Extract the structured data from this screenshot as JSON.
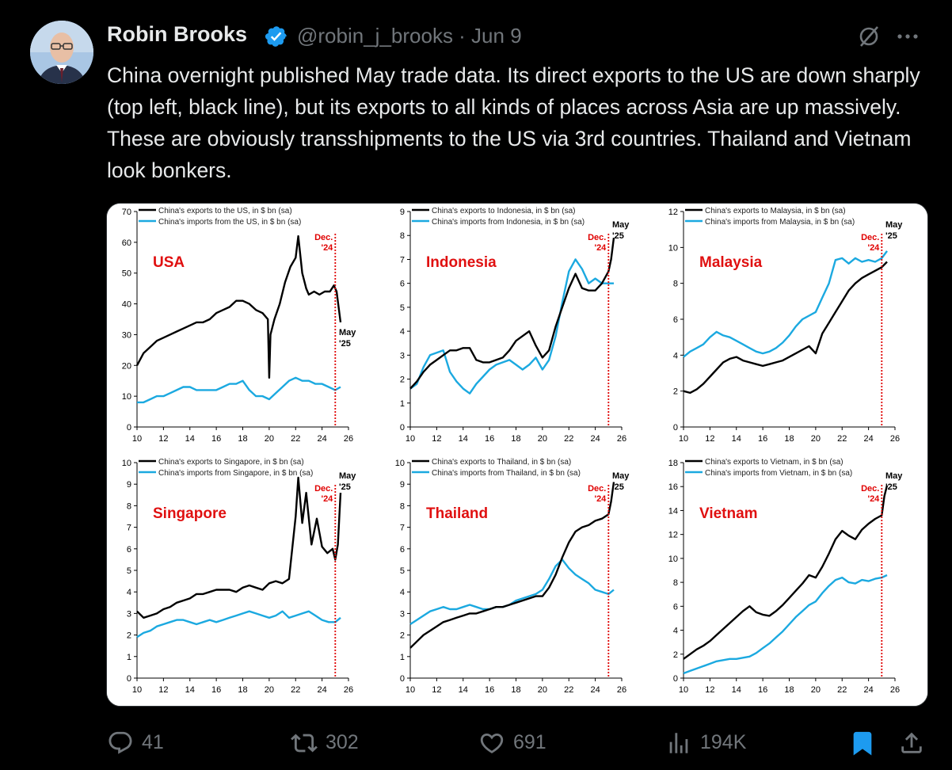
{
  "author": {
    "name": "Robin Brooks",
    "handle_date": "@robin_j_brooks · Jun 9",
    "verified": true
  },
  "tweet_text": "China overnight published May trade data. Its direct exports to the US are down sharply (top left, black line), but its exports to all kinds of places across Asia are up massively. These are obviously transshipments to the US via 3rd countries. Thailand and Vietnam look bonkers.",
  "actions": {
    "replies": "41",
    "reposts": "302",
    "likes": "691",
    "views": "194K"
  },
  "colors": {
    "exports_line": "#000000",
    "imports_line": "#1ba9e0",
    "marker_line": "#e00000",
    "country_label": "#e01010",
    "bookmark_active": "#1d9bf0"
  },
  "chart_data": [
    {
      "type": "line",
      "label": "USA",
      "ylim": [
        0,
        70
      ],
      "yticks": [
        0,
        10,
        20,
        30,
        40,
        50,
        60,
        70
      ],
      "xlim": [
        10,
        26
      ],
      "xticks": [
        10,
        12,
        14,
        16,
        18,
        20,
        22,
        24,
        26
      ],
      "marker_x": 25.0,
      "marker_label": [
        "Dec.",
        "'24"
      ],
      "end_label": [
        "May",
        "'25"
      ],
      "series": [
        {
          "name": "China's exports to the US, in $ bn (sa)",
          "color": "#000000",
          "x": [
            10,
            10.5,
            11,
            11.5,
            12,
            12.5,
            13,
            13.5,
            14,
            14.5,
            15,
            15.5,
            16,
            16.5,
            17,
            17.5,
            18,
            18.5,
            19,
            19.5,
            19.9,
            20.0,
            20.1,
            20.4,
            20.8,
            21.2,
            21.6,
            22.0,
            22.2,
            22.5,
            22.8,
            23.0,
            23.4,
            23.8,
            24.2,
            24.6,
            24.9,
            25.1,
            25.4
          ],
          "y": [
            20,
            24,
            26,
            28,
            29,
            30,
            31,
            32,
            33,
            34,
            34,
            35,
            37,
            38,
            39,
            41,
            41,
            40,
            38,
            37,
            35,
            16,
            30,
            35,
            40,
            47,
            52,
            55,
            62,
            50,
            45,
            43,
            44,
            43,
            44,
            44,
            46,
            44,
            34
          ]
        },
        {
          "name": "China's imports from the US, in $ bn (sa)",
          "color": "#1ba9e0",
          "x": [
            10,
            10.5,
            11,
            11.5,
            12,
            12.5,
            13,
            13.5,
            14,
            14.5,
            15,
            15.5,
            16,
            16.5,
            17,
            17.5,
            18,
            18.5,
            19,
            19.5,
            20,
            20.5,
            21,
            21.5,
            22,
            22.5,
            23,
            23.5,
            24,
            24.5,
            25,
            25.4
          ],
          "y": [
            8,
            8,
            9,
            10,
            10,
            11,
            12,
            13,
            13,
            12,
            12,
            12,
            12,
            13,
            14,
            14,
            15,
            12,
            10,
            10,
            9,
            11,
            13,
            15,
            16,
            15,
            15,
            14,
            14,
            13,
            12,
            13
          ]
        }
      ]
    },
    {
      "type": "line",
      "label": "Indonesia",
      "ylim": [
        0,
        9
      ],
      "yticks": [
        0,
        1,
        2,
        3,
        4,
        5,
        6,
        7,
        8,
        9
      ],
      "xlim": [
        10,
        26
      ],
      "xticks": [
        10,
        12,
        14,
        16,
        18,
        20,
        22,
        24,
        26
      ],
      "marker_x": 25.0,
      "marker_label": [
        "Dec.",
        "'24"
      ],
      "end_label": [
        "May",
        "'25"
      ],
      "series": [
        {
          "name": "China's exports to Indonesia, in $ bn (sa)",
          "color": "#000000",
          "x": [
            10,
            10.5,
            11,
            11.5,
            12,
            12.5,
            13,
            13.5,
            14,
            14.5,
            15,
            15.5,
            16,
            16.5,
            17,
            17.5,
            18,
            18.5,
            19,
            19.5,
            20,
            20.5,
            21,
            21.5,
            22,
            22.5,
            23,
            23.5,
            24,
            24.5,
            25,
            25.2,
            25.4
          ],
          "y": [
            1.6,
            1.9,
            2.3,
            2.6,
            2.8,
            3.0,
            3.2,
            3.2,
            3.3,
            3.3,
            2.8,
            2.7,
            2.7,
            2.8,
            2.9,
            3.2,
            3.6,
            3.8,
            4.0,
            3.4,
            2.9,
            3.2,
            4.2,
            5.0,
            5.8,
            6.4,
            5.8,
            5.7,
            5.7,
            6.0,
            6.5,
            7.0,
            7.9
          ]
        },
        {
          "name": "China's imports from Indonesia, in $ bn (sa)",
          "color": "#1ba9e0",
          "x": [
            10,
            10.5,
            11,
            11.5,
            12,
            12.5,
            13,
            13.5,
            14,
            14.5,
            15,
            15.5,
            16,
            16.5,
            17,
            17.5,
            18,
            18.5,
            19,
            19.5,
            20,
            20.5,
            21,
            21.5,
            22,
            22.5,
            23,
            23.5,
            24,
            24.5,
            25,
            25.4
          ],
          "y": [
            1.6,
            1.8,
            2.5,
            3.0,
            3.1,
            3.2,
            2.3,
            1.9,
            1.6,
            1.4,
            1.8,
            2.1,
            2.4,
            2.6,
            2.7,
            2.8,
            2.6,
            2.4,
            2.6,
            2.9,
            2.4,
            2.8,
            3.8,
            5.2,
            6.5,
            7.0,
            6.6,
            6.0,
            6.2,
            6.0,
            6.0,
            6.0
          ]
        }
      ]
    },
    {
      "type": "line",
      "label": "Malaysia",
      "ylim": [
        0,
        12
      ],
      "yticks": [
        0,
        2,
        4,
        6,
        8,
        10,
        12
      ],
      "xlim": [
        10,
        26
      ],
      "xticks": [
        10,
        12,
        14,
        16,
        18,
        20,
        22,
        24,
        26
      ],
      "marker_x": 25.0,
      "marker_label": [
        "Dec.",
        "'24"
      ],
      "end_label": [
        "May",
        "'25"
      ],
      "series": [
        {
          "name": "China's exports to Malaysia, in $ bn (sa)",
          "color": "#000000",
          "x": [
            10,
            10.5,
            11,
            11.5,
            12,
            12.5,
            13,
            13.5,
            14,
            14.5,
            15,
            15.5,
            16,
            16.5,
            17,
            17.5,
            18,
            18.5,
            19,
            19.5,
            20,
            20.5,
            21,
            21.5,
            22,
            22.5,
            23,
            23.5,
            24,
            24.5,
            25,
            25.4
          ],
          "y": [
            2.0,
            1.9,
            2.1,
            2.4,
            2.8,
            3.2,
            3.6,
            3.8,
            3.9,
            3.7,
            3.6,
            3.5,
            3.4,
            3.5,
            3.6,
            3.7,
            3.9,
            4.1,
            4.3,
            4.5,
            4.1,
            5.2,
            5.8,
            6.4,
            7.0,
            7.6,
            8.0,
            8.3,
            8.5,
            8.7,
            8.9,
            9.2
          ]
        },
        {
          "name": "China's imports from Malaysia, in $ bn (sa)",
          "color": "#1ba9e0",
          "x": [
            10,
            10.5,
            11,
            11.5,
            12,
            12.5,
            13,
            13.5,
            14,
            14.5,
            15,
            15.5,
            16,
            16.5,
            17,
            17.5,
            18,
            18.5,
            19,
            19.5,
            20,
            20.5,
            21,
            21.5,
            22,
            22.5,
            23,
            23.5,
            24,
            24.5,
            25,
            25.4
          ],
          "y": [
            3.9,
            4.2,
            4.4,
            4.6,
            5.0,
            5.3,
            5.1,
            5.0,
            4.8,
            4.6,
            4.4,
            4.2,
            4.1,
            4.2,
            4.4,
            4.7,
            5.1,
            5.6,
            6.0,
            6.2,
            6.4,
            7.2,
            8.0,
            9.3,
            9.4,
            9.1,
            9.4,
            9.2,
            9.3,
            9.2,
            9.4,
            9.8
          ]
        }
      ]
    },
    {
      "type": "line",
      "label": "Singapore",
      "ylim": [
        0,
        10
      ],
      "yticks": [
        0,
        1,
        2,
        3,
        4,
        5,
        6,
        7,
        8,
        9,
        10
      ],
      "xlim": [
        10,
        26
      ],
      "xticks": [
        10,
        12,
        14,
        16,
        18,
        20,
        22,
        24,
        26
      ],
      "marker_x": 25.0,
      "marker_label": [
        "Dec.",
        "'24"
      ],
      "end_label": [
        "May",
        "'25"
      ],
      "series": [
        {
          "name": "China's exports to Singapore, in $ bn (sa)",
          "color": "#000000",
          "x": [
            10,
            10.5,
            11,
            11.5,
            12,
            12.5,
            13,
            13.5,
            14,
            14.5,
            15,
            15.5,
            16,
            16.5,
            17,
            17.5,
            18,
            18.5,
            19,
            19.5,
            20,
            20.5,
            21,
            21.5,
            22,
            22.2,
            22.5,
            22.8,
            23.2,
            23.6,
            24.0,
            24.4,
            24.8,
            25.0,
            25.2,
            25.4
          ],
          "y": [
            3.1,
            2.8,
            2.9,
            3.0,
            3.2,
            3.3,
            3.5,
            3.6,
            3.7,
            3.9,
            3.9,
            4.0,
            4.1,
            4.1,
            4.1,
            4.0,
            4.2,
            4.3,
            4.2,
            4.1,
            4.4,
            4.5,
            4.4,
            4.6,
            7.5,
            9.3,
            7.2,
            8.6,
            6.2,
            7.4,
            6.1,
            5.8,
            6.0,
            5.5,
            6.2,
            8.6
          ]
        },
        {
          "name": "China's imports from Singapore, in $ bn (sa)",
          "color": "#1ba9e0",
          "x": [
            10,
            10.5,
            11,
            11.5,
            12,
            12.5,
            13,
            13.5,
            14,
            14.5,
            15,
            15.5,
            16,
            16.5,
            17,
            17.5,
            18,
            18.5,
            19,
            19.5,
            20,
            20.5,
            21,
            21.5,
            22,
            22.5,
            23,
            23.5,
            24,
            24.5,
            25,
            25.4
          ],
          "y": [
            1.9,
            2.1,
            2.2,
            2.4,
            2.5,
            2.6,
            2.7,
            2.7,
            2.6,
            2.5,
            2.6,
            2.7,
            2.6,
            2.7,
            2.8,
            2.9,
            3.0,
            3.1,
            3.0,
            2.9,
            2.8,
            2.9,
            3.1,
            2.8,
            2.9,
            3.0,
            3.1,
            2.9,
            2.7,
            2.6,
            2.6,
            2.8
          ]
        }
      ]
    },
    {
      "type": "line",
      "label": "Thailand",
      "ylim": [
        0,
        10
      ],
      "yticks": [
        0,
        1,
        2,
        3,
        4,
        5,
        6,
        7,
        8,
        9,
        10
      ],
      "xlim": [
        10,
        26
      ],
      "xticks": [
        10,
        12,
        14,
        16,
        18,
        20,
        22,
        24,
        26
      ],
      "marker_x": 25.0,
      "marker_label": [
        "Dec.",
        "'24"
      ],
      "end_label": [
        "May",
        "'25"
      ],
      "series": [
        {
          "name": "China's exports to Thailand, in $ bn (sa)",
          "color": "#000000",
          "x": [
            10,
            10.5,
            11,
            11.5,
            12,
            12.5,
            13,
            13.5,
            14,
            14.5,
            15,
            15.5,
            16,
            16.5,
            17,
            17.5,
            18,
            18.5,
            19,
            19.5,
            20,
            20.5,
            21,
            21.5,
            22,
            22.5,
            23,
            23.5,
            24,
            24.5,
            25,
            25.2,
            25.4
          ],
          "y": [
            1.4,
            1.7,
            2.0,
            2.2,
            2.4,
            2.6,
            2.7,
            2.8,
            2.9,
            3.0,
            3.0,
            3.1,
            3.2,
            3.3,
            3.3,
            3.4,
            3.5,
            3.6,
            3.7,
            3.8,
            3.8,
            4.2,
            4.8,
            5.6,
            6.3,
            6.8,
            7.0,
            7.1,
            7.3,
            7.4,
            7.6,
            8.2,
            9.1
          ]
        },
        {
          "name": "China's imports from Thailand, in $ bn (sa)",
          "color": "#1ba9e0",
          "x": [
            10,
            10.5,
            11,
            11.5,
            12,
            12.5,
            13,
            13.5,
            14,
            14.5,
            15,
            15.5,
            16,
            16.5,
            17,
            17.5,
            18,
            18.5,
            19,
            19.5,
            20,
            20.5,
            21,
            21.5,
            22,
            22.5,
            23,
            23.5,
            24,
            24.5,
            25,
            25.4
          ],
          "y": [
            2.5,
            2.7,
            2.9,
            3.1,
            3.2,
            3.3,
            3.2,
            3.2,
            3.3,
            3.4,
            3.3,
            3.2,
            3.2,
            3.3,
            3.3,
            3.4,
            3.6,
            3.7,
            3.8,
            3.9,
            4.1,
            4.6,
            5.2,
            5.5,
            5.1,
            4.8,
            4.6,
            4.4,
            4.1,
            4.0,
            3.9,
            4.1
          ]
        }
      ]
    },
    {
      "type": "line",
      "label": "Vietnam",
      "ylim": [
        0,
        18
      ],
      "yticks": [
        0,
        2,
        4,
        6,
        8,
        10,
        12,
        14,
        16,
        18
      ],
      "xlim": [
        10,
        26
      ],
      "xticks": [
        10,
        12,
        14,
        16,
        18,
        20,
        22,
        24,
        26
      ],
      "marker_x": 25.0,
      "marker_label": [
        "Dec.",
        "'24"
      ],
      "end_label": [
        "May",
        "'25"
      ],
      "series": [
        {
          "name": "China's exports to Vietnam, in $ bn (sa)",
          "color": "#000000",
          "x": [
            10,
            10.5,
            11,
            11.5,
            12,
            12.5,
            13,
            13.5,
            14,
            14.5,
            15,
            15.5,
            16,
            16.5,
            17,
            17.5,
            18,
            18.5,
            19,
            19.5,
            20,
            20.5,
            21,
            21.5,
            22,
            22.5,
            23,
            23.5,
            24,
            24.5,
            25,
            25.2,
            25.4
          ],
          "y": [
            1.6,
            2.0,
            2.4,
            2.7,
            3.1,
            3.6,
            4.1,
            4.6,
            5.1,
            5.6,
            6.0,
            5.5,
            5.3,
            5.2,
            5.6,
            6.1,
            6.7,
            7.3,
            7.9,
            8.6,
            8.4,
            9.3,
            10.4,
            11.6,
            12.3,
            11.9,
            11.6,
            12.4,
            12.9,
            13.3,
            13.6,
            15.2,
            16.1
          ]
        },
        {
          "name": "China's imports from Vietnam, in $ bn (sa)",
          "color": "#1ba9e0",
          "x": [
            10,
            10.5,
            11,
            11.5,
            12,
            12.5,
            13,
            13.5,
            14,
            14.5,
            15,
            15.5,
            16,
            16.5,
            17,
            17.5,
            18,
            18.5,
            19,
            19.5,
            20,
            20.5,
            21,
            21.5,
            22,
            22.5,
            23,
            23.5,
            24,
            24.5,
            25,
            25.4
          ],
          "y": [
            0.4,
            0.6,
            0.8,
            1.0,
            1.2,
            1.4,
            1.5,
            1.6,
            1.6,
            1.7,
            1.8,
            2.1,
            2.5,
            2.9,
            3.4,
            3.9,
            4.5,
            5.1,
            5.6,
            6.1,
            6.4,
            7.1,
            7.7,
            8.2,
            8.4,
            8.0,
            7.9,
            8.2,
            8.1,
            8.3,
            8.4,
            8.6
          ]
        }
      ]
    }
  ]
}
